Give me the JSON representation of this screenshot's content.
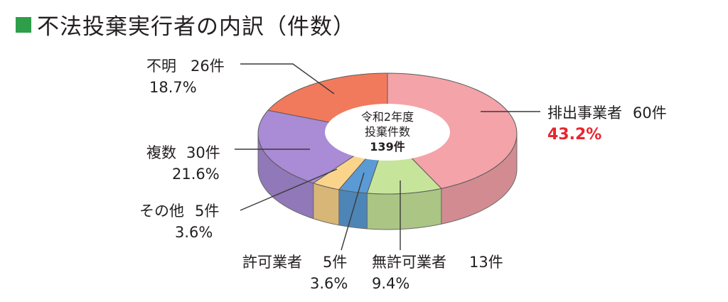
{
  "title": "不法投棄実行者の内訳（件数）",
  "chart_data": {
    "type": "pie",
    "center_label": {
      "line1": "令和2年度",
      "line2": "投棄件数",
      "line3": "139件"
    },
    "slices": [
      {
        "name": "排出事業者",
        "count_label": "60件",
        "count": 60,
        "percent": 43.2,
        "percent_label": "43.2%",
        "color": "#f4a3a9"
      },
      {
        "name": "無許可業者",
        "count_label": "13件",
        "count": 13,
        "percent": 9.4,
        "percent_label": "9.4%",
        "color": "#c7e59a"
      },
      {
        "name": "許可業者",
        "count_label": "5件",
        "count": 5,
        "percent": 3.6,
        "percent_label": "3.6%",
        "color": "#5b9bd5"
      },
      {
        "name": "その他",
        "count_label": "5件",
        "count": 5,
        "percent": 3.6,
        "percent_label": "3.6%",
        "color": "#fbd48c"
      },
      {
        "name": "複数",
        "count_label": "30件",
        "count": 30,
        "percent": 21.6,
        "percent_label": "21.6%",
        "color": "#a98bd6"
      },
      {
        "name": "不明",
        "count_label": "26件",
        "count": 26,
        "percent": 18.7,
        "percent_label": "18.7%",
        "color": "#f27a5c"
      }
    ]
  }
}
